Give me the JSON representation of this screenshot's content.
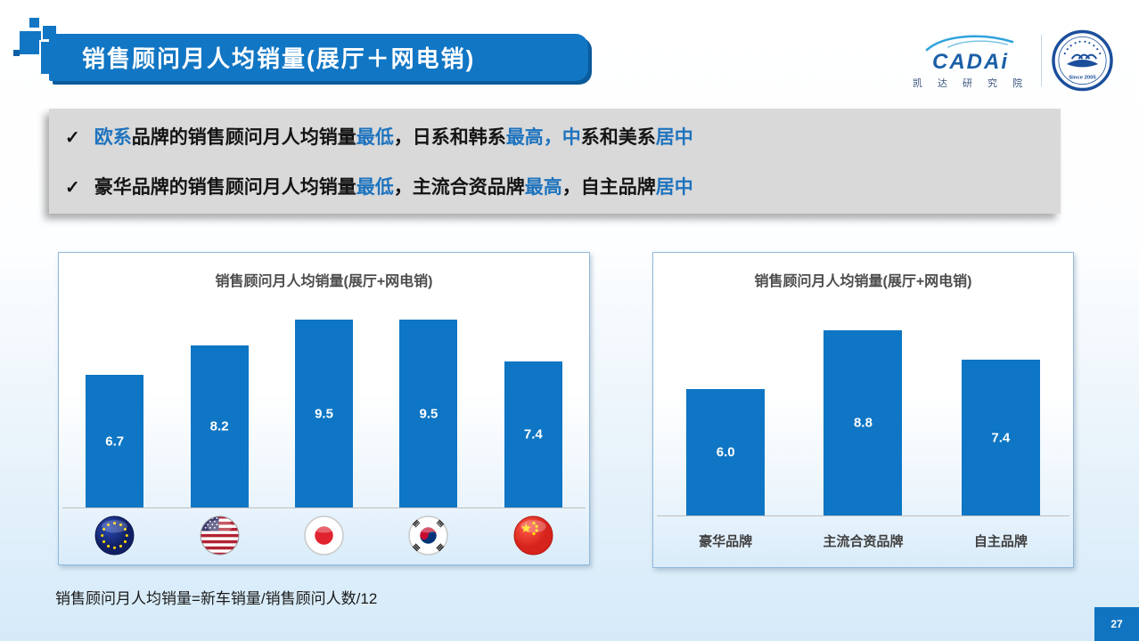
{
  "slide": {
    "title": "销售顾问月人均销量(展厅＋网电销)",
    "footnote": "销售顾问月人均销量=新车销量/销售顾问人数/12",
    "page_number": "27"
  },
  "logo": {
    "brand": "CADAi",
    "brand_sub": "凯 达 研 究 院",
    "badge_bottom_text": "Since 2005"
  },
  "callouts": [
    {
      "segments": [
        {
          "t": "欧系",
          "c": "blue"
        },
        {
          "t": "品牌的销售顾问月人均销量",
          "c": "dark"
        },
        {
          "t": "最低",
          "c": "blue"
        },
        {
          "t": "，日系和韩系",
          "c": "dark"
        },
        {
          "t": "最高，中",
          "c": "blue"
        },
        {
          "t": "系和美系",
          "c": "dark"
        },
        {
          "t": "居中",
          "c": "blue"
        }
      ]
    },
    {
      "segments": [
        {
          "t": "豪华品牌的销售顾问月人均销量",
          "c": "dark"
        },
        {
          "t": "最低",
          "c": "blue"
        },
        {
          "t": "，主流合资品牌",
          "c": "dark"
        },
        {
          "t": "最高",
          "c": "blue"
        },
        {
          "t": "，自主品牌",
          "c": "dark"
        },
        {
          "t": "居中",
          "c": "blue"
        }
      ]
    }
  ],
  "chart_data": [
    {
      "type": "bar",
      "title": "销售顾问月人均销量(展厅+网电销)",
      "categories": [
        "欧系",
        "美系",
        "日系",
        "韩系",
        "中系"
      ],
      "category_icons": [
        "eu-flag",
        "us-flag",
        "japan-flag",
        "korea-flag",
        "china-flag"
      ],
      "values": [
        6.7,
        8.2,
        9.5,
        9.5,
        7.4
      ],
      "labels": [
        "6.7",
        "8.2",
        "9.5",
        "9.5",
        "7.4"
      ],
      "ylim": [
        0,
        12
      ],
      "bar_color": "#0e76c4",
      "value_label_color": "#ffffff",
      "grid": false,
      "legend": false
    },
    {
      "type": "bar",
      "title": "销售顾问月人均销量(展厅+网电销)",
      "categories": [
        "豪华品牌",
        "主流合资品牌",
        "自主品牌"
      ],
      "values": [
        6.0,
        8.8,
        7.4
      ],
      "labels": [
        "6.0",
        "8.8",
        "7.4"
      ],
      "ylim": [
        0,
        12
      ],
      "bar_color": "#0e76c4",
      "value_label_color": "#ffffff",
      "grid": false,
      "legend": false
    }
  ],
  "colors": {
    "banner_blue": "#1176c4",
    "banner_shadow_blue": "#0a5b9b",
    "accent_text_blue": "#1e73be",
    "bar_blue": "#0e76c4",
    "callout_box_gray": "#d9d9d9",
    "chart_border_blue": "#8fb8dc",
    "page_badge_blue": "#1074c0",
    "slide_bottom_blue": "#d5eaf9"
  }
}
